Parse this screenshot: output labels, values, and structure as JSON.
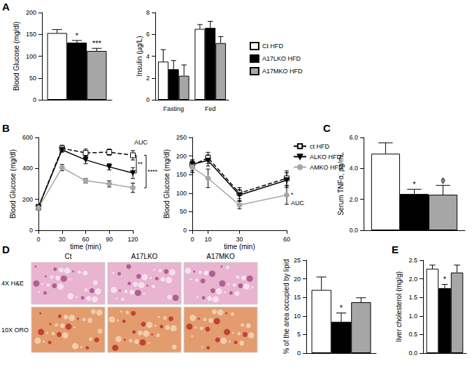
{
  "chart_data": [
    {
      "panel": "A",
      "type": "bar",
      "ylabel": "Blood Glucose (mg/dl)",
      "ylim": [
        0,
        200
      ],
      "yticks": [
        0,
        50,
        100,
        150,
        200
      ],
      "grid": false,
      "tick_labels": "y",
      "series": [
        {
          "name": "Ct HFD",
          "color": "#ffffff",
          "values": [
            153
          ],
          "error": [
            8
          ]
        },
        {
          "name": "A17LKO HFD",
          "color": "#000000",
          "values": [
            131
          ],
          "error": [
            5
          ],
          "annotations": [
            "*"
          ]
        },
        {
          "name": "A17MKO HFD",
          "color": "#a6a6a6",
          "values": [
            112
          ],
          "error": [
            6
          ],
          "annotations": [
            "***"
          ]
        }
      ]
    },
    {
      "type": "bar",
      "ylabel": "Insulin (µg/L)",
      "categories": [
        "Fasting",
        "Fed"
      ],
      "ylim": [
        0,
        8
      ],
      "yticks": [
        0,
        2,
        4,
        6,
        8
      ],
      "grid": false,
      "legend": "right",
      "series": [
        {
          "name": "Ct HFD",
          "color": "#ffffff",
          "values": [
            3.5,
            6.5
          ],
          "error": [
            1.1,
            0.4
          ]
        },
        {
          "name": "A17LKO HFD",
          "color": "#000000",
          "values": [
            2.8,
            6.6
          ],
          "error": [
            0.8,
            0.6
          ]
        },
        {
          "name": "A17MKO HFD",
          "color": "#a6a6a6",
          "values": [
            2.2,
            5.2
          ],
          "error": [
            1.0,
            0.6
          ]
        }
      ]
    },
    {
      "panel": "B",
      "type": "line",
      "xlabel": "time (min)",
      "ylabel": "Blood Glucose (mg/dl)",
      "x": [
        0,
        30,
        60,
        90,
        120
      ],
      "xlim": [
        0,
        120
      ],
      "xticks": [
        0,
        30,
        60,
        90,
        120
      ],
      "ylim": [
        0,
        600
      ],
      "yticks": [
        0,
        200,
        400,
        600
      ],
      "grid": false,
      "series": [
        {
          "name": "ct HFD",
          "color": "#000000",
          "marker": "square-open",
          "line_style": "dashed",
          "values": [
            150,
            530,
            500,
            505,
            485
          ],
          "error": [
            15,
            20,
            25,
            20,
            30
          ]
        },
        {
          "name": "ALKO HFD",
          "color": "#000000",
          "marker": "triangle-down",
          "line_style": "solid",
          "values": [
            150,
            520,
            455,
            410,
            370
          ],
          "error": [
            15,
            15,
            25,
            20,
            35
          ]
        },
        {
          "name": "AMKO HFD",
          "color": "#a6a6a6",
          "marker": "circle",
          "line_style": "solid",
          "values": [
            145,
            405,
            320,
            300,
            275
          ],
          "error": [
            15,
            20,
            15,
            20,
            30
          ]
        }
      ],
      "annotations": [
        {
          "text": "AUC"
        },
        {
          "text": "**",
          "between": [
            "ct HFD",
            "ALKO HFD"
          ]
        },
        {
          "text": "****",
          "between": [
            "ct HFD",
            "AMKO HFD"
          ]
        }
      ]
    },
    {
      "type": "line",
      "xlabel": "time (min)",
      "ylabel": "Blood Glucose (mg/dl)",
      "x": [
        0,
        10,
        30,
        60
      ],
      "xlim": [
        0,
        60
      ],
      "xticks": [
        0,
        10,
        30,
        60
      ],
      "ylim": [
        0,
        250
      ],
      "yticks": [
        0,
        50,
        100,
        150,
        200,
        250
      ],
      "grid": false,
      "legend": "right",
      "series": [
        {
          "name": "ct HFD",
          "color": "#000000",
          "marker": "square-open",
          "line_style": "dashed",
          "values": [
            175,
            195,
            100,
            140
          ],
          "error": [
            15,
            15,
            15,
            20
          ]
        },
        {
          "name": "ALKO HFD",
          "color": "#000000",
          "marker": "triangle-down",
          "line_style": "solid",
          "values": [
            178,
            188,
            95,
            135
          ],
          "error": [
            10,
            15,
            15,
            20
          ]
        },
        {
          "name": "AMKO HFD",
          "color": "#a6a6a6",
          "marker": "circle",
          "line_style": "solid",
          "values": [
            170,
            140,
            68,
            95
          ],
          "error": [
            15,
            25,
            10,
            25
          ]
        }
      ],
      "annotations": [
        {
          "text": "*",
          "series": "AMKO HFD"
        },
        {
          "text": "AUC",
          "series": "AMKO HFD"
        }
      ]
    },
    {
      "panel": "C",
      "type": "bar",
      "ylabel": "Serum TNFα, pg/mL",
      "ylim": [
        0,
        6
      ],
      "yticks": [
        {
          "value": 0,
          "label": "0.0"
        },
        {
          "value": 2,
          "label": "2.0"
        },
        {
          "value": 4,
          "label": "4.0"
        },
        {
          "value": 6,
          "label": "6.0"
        }
      ],
      "grid": false,
      "tick_labels": "y",
      "series": [
        {
          "name": "Ct HFD",
          "color": "#ffffff",
          "values": [
            4.95
          ],
          "error": [
            0.7
          ]
        },
        {
          "name": "A17LKO HFD",
          "color": "#000000",
          "values": [
            2.35
          ],
          "error": [
            0.3
          ],
          "annotations": [
            "*"
          ]
        },
        {
          "name": "A17MKO HFD",
          "color": "#a6a6a6",
          "values": [
            2.3
          ],
          "error": [
            0.6
          ],
          "annotations": [
            "ϕ"
          ]
        }
      ]
    },
    {
      "panel": "D",
      "type": "bar",
      "ylabel": "% of the area occupied by lipid",
      "ylim": [
        0,
        25
      ],
      "yticks": [
        0,
        5,
        10,
        15,
        20,
        25
      ],
      "grid": false,
      "tick_labels": "y",
      "image_panel": {
        "columns": [
          "Ct",
          "A17LKO",
          "A17MKO"
        ],
        "rows": [
          "4X H&E",
          "10X ORO"
        ]
      },
      "series": [
        {
          "name": "Ct HFD",
          "color": "#ffffff",
          "values": [
            17
          ],
          "error": [
            3.5
          ]
        },
        {
          "name": "A17LKO HFD",
          "color": "#000000",
          "values": [
            8.4
          ],
          "error": [
            2.4
          ],
          "annotations": [
            "*"
          ]
        },
        {
          "name": "A17MKO HFD",
          "color": "#a6a6a6",
          "values": [
            13.7
          ],
          "error": [
            1.2
          ]
        }
      ]
    },
    {
      "panel": "E",
      "type": "bar",
      "ylabel": "liver cholesterol (mg/g)",
      "ylim": [
        0,
        2.5
      ],
      "yticks": [
        {
          "value": 0,
          "label": "0.0"
        },
        0.5,
        {
          "value": 1,
          "label": "1.0"
        },
        1.5,
        {
          "value": 2,
          "label": "2.0"
        },
        2.5
      ],
      "grid": false,
      "tick_labels": "y",
      "series": [
        {
          "name": "Ct HFD",
          "color": "#ffffff",
          "values": [
            2.27
          ],
          "error": [
            0.1
          ]
        },
        {
          "name": "A17LKO HFD",
          "color": "#000000",
          "values": [
            1.75
          ],
          "error": [
            0.1
          ],
          "annotations": [
            "*"
          ]
        },
        {
          "name": "A17MKO HFD",
          "color": "#a6a6a6",
          "values": [
            2.17
          ],
          "error": [
            0.2
          ]
        }
      ]
    }
  ]
}
